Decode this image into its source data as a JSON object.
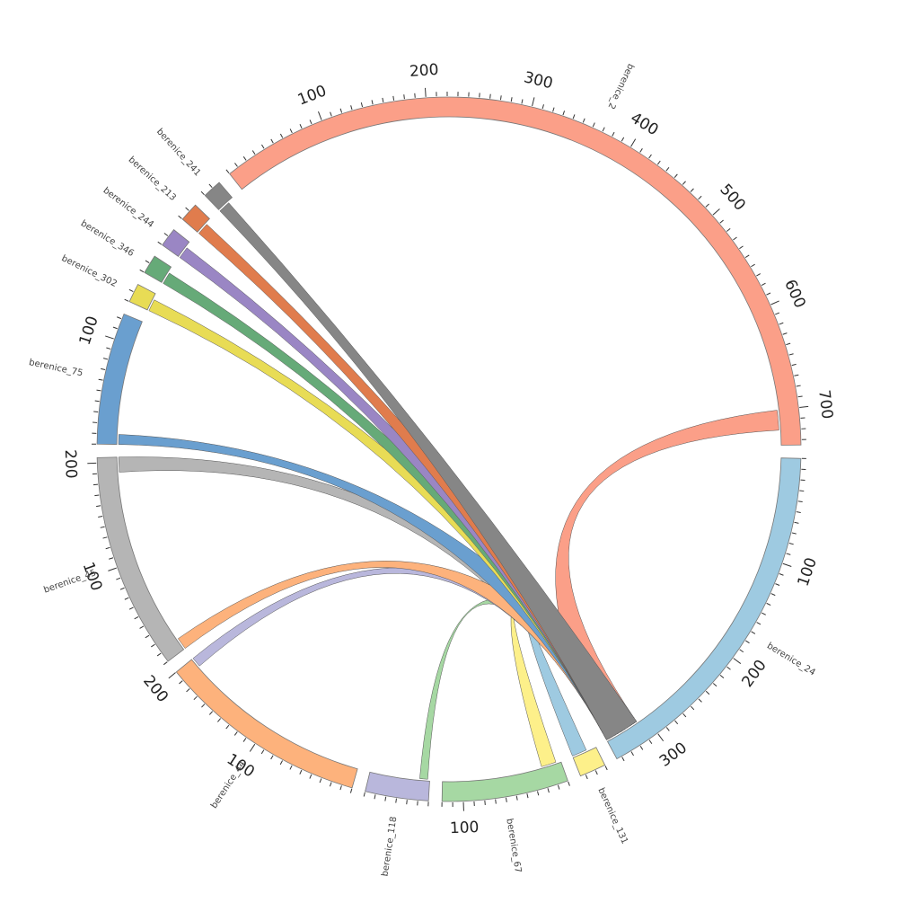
{
  "chart_data": {
    "type": "chord",
    "segments": [
      {
        "id": "berenice_24",
        "label": "berenice_24",
        "length": 345,
        "color": "#9ecae1",
        "labeled_ticks": [
          100,
          200,
          300
        ]
      },
      {
        "id": "berenice_131",
        "label": "berenice_131",
        "length": 25,
        "color": "#fdf08a",
        "labeled_ticks": []
      },
      {
        "id": "berenice_67",
        "label": "berenice_67",
        "length": 120,
        "color": "#a6d8a3",
        "labeled_ticks": [
          100
        ]
      },
      {
        "id": "berenice_118",
        "label": "berenice_118",
        "length": 60,
        "color": "#b9b7dc",
        "labeled_ticks": []
      },
      {
        "id": "berenice_44",
        "label": "berenice_44",
        "length": 200,
        "color": "#fdb27c",
        "labeled_ticks": [
          100,
          200
        ]
      },
      {
        "id": "berenice_45",
        "label": "berenice_45",
        "length": 205,
        "color": "#b5b5b5",
        "labeled_ticks": [
          100,
          200
        ]
      },
      {
        "id": "berenice_75",
        "label": "berenice_75",
        "length": 125,
        "color": "#6a9fcf",
        "labeled_ticks": [
          100
        ]
      },
      {
        "id": "berenice_302",
        "label": "berenice_302",
        "length": 18,
        "color": "#e8dc55",
        "labeled_ticks": []
      },
      {
        "id": "berenice_346",
        "label": "berenice_346",
        "length": 18,
        "color": "#66aa78",
        "labeled_ticks": []
      },
      {
        "id": "berenice_244",
        "label": "berenice_244",
        "length": 18,
        "color": "#9a86c4",
        "labeled_ticks": []
      },
      {
        "id": "berenice_213",
        "label": "berenice_213",
        "length": 18,
        "color": "#e07c4d",
        "labeled_ticks": []
      },
      {
        "id": "berenice_241",
        "label": "berenice_241",
        "length": 18,
        "color": "#868686",
        "labeled_ticks": []
      },
      {
        "id": "berenice_2",
        "label": "berenice_2",
        "length": 735,
        "color": "#fb9f88",
        "labeled_ticks": [
          100,
          200,
          300,
          400,
          500,
          600,
          700
        ]
      }
    ],
    "links": [
      {
        "source": "berenice_24",
        "source_range": [
          310,
          345
        ],
        "target": "berenice_2",
        "target_range": [
          700,
          720
        ],
        "color": "#fb9f88"
      },
      {
        "source": "berenice_24",
        "source_range": [
          310,
          345
        ],
        "target": "berenice_131",
        "target_range": [
          10,
          25
        ],
        "color": "#9ecae1"
      },
      {
        "source": "berenice_24",
        "source_range": [
          310,
          345
        ],
        "target": "berenice_67",
        "target_range": [
          5,
          20
        ],
        "color": "#fdf08a"
      },
      {
        "source": "berenice_24",
        "source_range": [
          310,
          345
        ],
        "target": "berenice_118",
        "target_range": [
          2,
          10
        ],
        "color": "#a6d8a3"
      },
      {
        "source": "berenice_24",
        "source_range": [
          310,
          345
        ],
        "target": "berenice_44",
        "target_range": [
          190,
          200
        ],
        "color": "#b9b7dc"
      },
      {
        "source": "berenice_24",
        "source_range": [
          310,
          345
        ],
        "target": "berenice_45",
        "target_range": [
          190,
          205
        ],
        "color": "#b5b5b5"
      },
      {
        "source": "berenice_24",
        "source_range": [
          310,
          345
        ],
        "target": "berenice_45",
        "target_range": [
          0,
          12
        ],
        "color": "#fdb27c"
      },
      {
        "source": "berenice_24",
        "source_range": [
          310,
          345
        ],
        "target": "berenice_75",
        "target_range": [
          0,
          10
        ],
        "color": "#6a9fcf"
      },
      {
        "source": "berenice_24",
        "source_range": [
          310,
          345
        ],
        "target": "berenice_302",
        "target_range": [
          0,
          12
        ],
        "color": "#e8dc55"
      },
      {
        "source": "berenice_24",
        "source_range": [
          310,
          345
        ],
        "target": "berenice_346",
        "target_range": [
          0,
          12
        ],
        "color": "#66aa78"
      },
      {
        "source": "berenice_24",
        "source_range": [
          310,
          345
        ],
        "target": "berenice_244",
        "target_range": [
          0,
          12
        ],
        "color": "#9a86c4"
      },
      {
        "source": "berenice_24",
        "source_range": [
          310,
          345
        ],
        "target": "berenice_213",
        "target_range": [
          0,
          12
        ],
        "color": "#e07c4d"
      },
      {
        "source": "berenice_24",
        "source_range": [
          310,
          345
        ],
        "target": "berenice_241",
        "target_range": [
          0,
          12
        ],
        "color": "#868686"
      }
    ],
    "tick_interval": 10,
    "labeled_tick_interval": 100
  }
}
